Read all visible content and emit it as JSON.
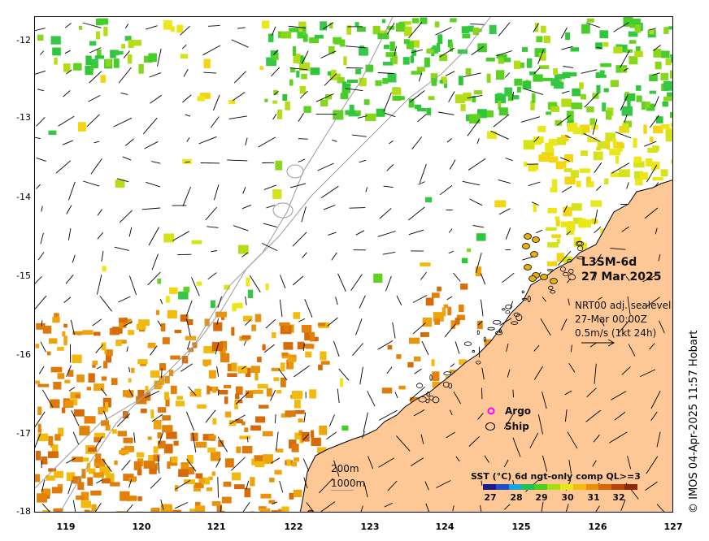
{
  "product": {
    "name": "L3SM-6d",
    "date": "27 Mar 2025"
  },
  "currents": {
    "source": "NRT00 adj. sealevel",
    "time": "27-Mar 00:00Z",
    "scale": "0.5m/s (1kt 24h)"
  },
  "markers": {
    "argo": "Argo",
    "ship": "Ship"
  },
  "bathymetry": {
    "contour_1": "200m",
    "contour_2": "1000m"
  },
  "colorbar": {
    "title": "SST (°C) 6d ngt-only comp QL>=3",
    "labels": [
      "27",
      "28",
      "29",
      "30",
      "31",
      "32"
    ],
    "colors": [
      "#1b1b8f",
      "#1f4fd0",
      "#14a7e6",
      "#1fbf5a",
      "#4bd01a",
      "#a6de10",
      "#e8e613",
      "#f2bd10",
      "#ea8e0c",
      "#d8660a",
      "#b9430a",
      "#8e2708"
    ]
  },
  "axes": {
    "y_ticks": [
      "-12",
      "-13",
      "-14",
      "-15",
      "-16",
      "-17",
      "-18"
    ],
    "x_ticks": [
      "119",
      "120",
      "121",
      "122",
      "123",
      "124",
      "125",
      "126",
      "127"
    ]
  },
  "credit": "© IMOS 04-Apr-2025 11:57 Hobart",
  "colors": {
    "land": "#fdc896",
    "coast": "#000000",
    "contour": "#9a9a9a",
    "argo": "#ff00ff",
    "ship_fill": "#e8b00c"
  }
}
